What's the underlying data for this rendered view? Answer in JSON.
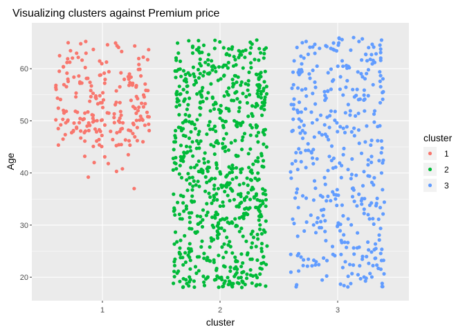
{
  "chart_data": {
    "type": "scatter",
    "title": "Visualizing clusters against Premium price",
    "xlabel": "cluster",
    "ylabel": "Age",
    "x_categories": [
      "1",
      "2",
      "3"
    ],
    "y_ticks": [
      20,
      30,
      40,
      50,
      60
    ],
    "ylim": [
      15.5,
      68.8
    ],
    "grid": true,
    "panel_background": "#EBEBEB",
    "grid_color": "#FFFFFF",
    "legend": {
      "title": "cluster",
      "position": "right",
      "entries": [
        {
          "label": "1",
          "color": "#F8766D"
        },
        {
          "label": "2",
          "color": "#00BA38"
        },
        {
          "label": "3",
          "color": "#619CFF"
        }
      ]
    },
    "series": [
      {
        "category": "1",
        "color": "#F8766D",
        "count": 220,
        "jitter_width": 0.4,
        "min_age": 37,
        "max_age": 66,
        "dense_range": [
          45,
          66
        ],
        "sparse_points": [
          [
            0.85,
            43.2
          ],
          [
            0.88,
            39.2
          ],
          [
            0.93,
            42.0
          ],
          [
            1.02,
            43.1
          ],
          [
            1.05,
            41.8
          ],
          [
            1.12,
            40.3
          ],
          [
            1.17,
            40.8
          ],
          [
            1.22,
            43.5
          ],
          [
            1.27,
            37.0
          ]
        ]
      },
      {
        "category": "2",
        "color": "#00BA38",
        "count": 760,
        "jitter_width": 0.4,
        "min_age": 18,
        "max_age": 65.6
      },
      {
        "category": "3",
        "color": "#619CFF",
        "count": 400,
        "jitter_width": 0.4,
        "min_age": 18,
        "max_age": 66
      }
    ]
  }
}
